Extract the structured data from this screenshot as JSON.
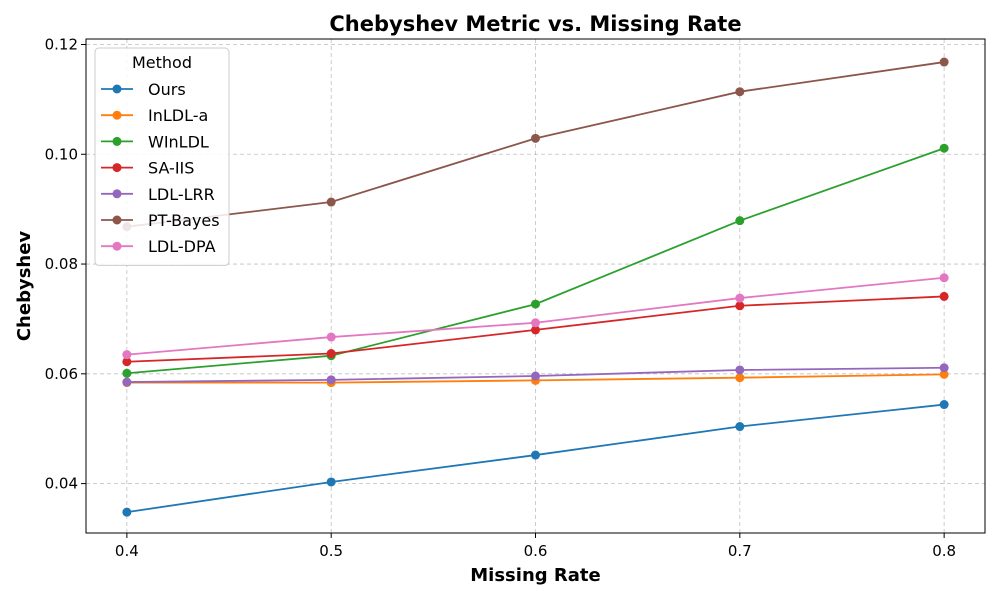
{
  "chart_data": {
    "type": "line",
    "title": "Chebyshev Metric vs. Missing Rate",
    "xlabel": "Missing Rate",
    "ylabel": "Chebyshev",
    "x": [
      0.4,
      0.5,
      0.6,
      0.7,
      0.8
    ],
    "x_tick_labels": [
      "0.4",
      "0.5",
      "0.6",
      "0.7",
      "0.8"
    ],
    "xlim": [
      0.38,
      0.82
    ],
    "ylim": [
      0.031,
      0.121
    ],
    "y_ticks": [
      0.04,
      0.06,
      0.08,
      0.1,
      0.12
    ],
    "y_tick_labels": [
      "0.04",
      "0.06",
      "0.08",
      "0.10",
      "0.12"
    ],
    "grid": true,
    "legend": {
      "title": "Method",
      "placement": "top-left"
    },
    "series": [
      {
        "name": "Ours",
        "color": "#1f77b4",
        "values": [
          0.0348,
          0.0403,
          0.0452,
          0.0504,
          0.0544
        ]
      },
      {
        "name": "InLDL-a",
        "color": "#ff7f0e",
        "values": [
          0.0584,
          0.0584,
          0.0588,
          0.0593,
          0.0599
        ]
      },
      {
        "name": "WInLDL",
        "color": "#2ca02c",
        "values": [
          0.0601,
          0.0633,
          0.0727,
          0.0879,
          0.1011
        ]
      },
      {
        "name": "SA-IIS",
        "color": "#d62728",
        "values": [
          0.0622,
          0.0637,
          0.068,
          0.0724,
          0.0741
        ]
      },
      {
        "name": "LDL-LRR",
        "color": "#9467bd",
        "values": [
          0.0585,
          0.0589,
          0.0596,
          0.0607,
          0.0611
        ]
      },
      {
        "name": "PT-Bayes",
        "color": "#8c564b",
        "values": [
          0.0868,
          0.0913,
          0.1029,
          0.1114,
          0.1168
        ]
      },
      {
        "name": "LDL-DPA",
        "color": "#e377c2",
        "values": [
          0.0635,
          0.0667,
          0.0693,
          0.0738,
          0.0775
        ]
      }
    ]
  }
}
